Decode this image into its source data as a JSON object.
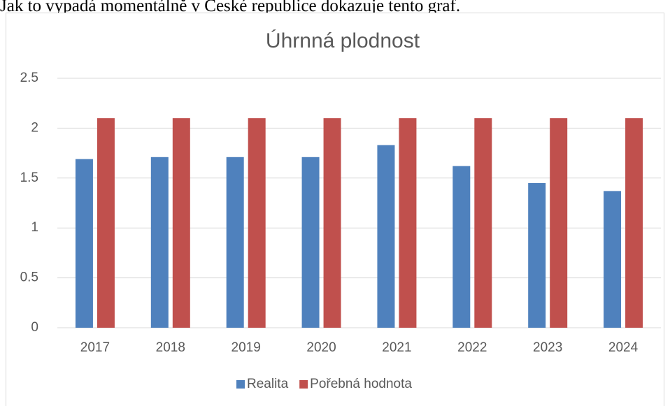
{
  "intro_text": "Jak to vypadá momentálně v České republice dokazuje tento graf.",
  "chart_data": {
    "type": "bar",
    "title": "Úhrnná plodnost",
    "categories": [
      "2017",
      "2018",
      "2019",
      "2020",
      "2021",
      "2022",
      "2023",
      "2024"
    ],
    "series": [
      {
        "name": "Realita",
        "color": "#4f81bd",
        "values": [
          1.69,
          1.71,
          1.71,
          1.71,
          1.83,
          1.62,
          1.45,
          1.37
        ]
      },
      {
        "name": "Pořebná hodnota",
        "color": "#c0504d",
        "values": [
          2.1,
          2.1,
          2.1,
          2.1,
          2.1,
          2.1,
          2.1,
          2.1
        ]
      }
    ],
    "ylim": [
      0,
      2.5
    ],
    "yticks": [
      0,
      0.5,
      1,
      1.5,
      2,
      2.5
    ],
    "grid": true,
    "legend": "bottom"
  }
}
